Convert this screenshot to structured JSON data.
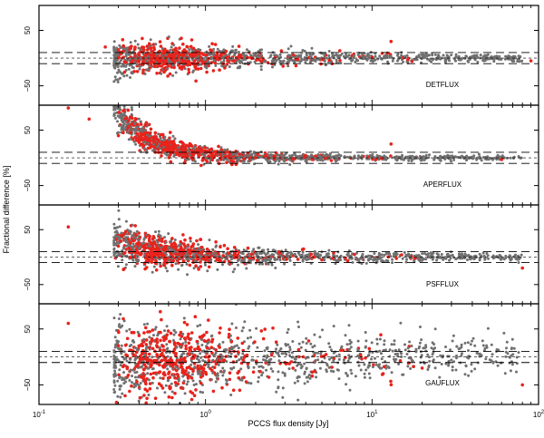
{
  "figure": {
    "ylabel": "Fractional difference [%]",
    "xlabel": "PCCS flux density [Jy]",
    "x_ticks": [
      {
        "value": 0.1,
        "base": "10",
        "exp": "-1"
      },
      {
        "value": 1,
        "base": "10",
        "exp": "0"
      },
      {
        "value": 10,
        "base": "10",
        "exp": "1"
      },
      {
        "value": 100,
        "base": "10",
        "exp": "2"
      }
    ],
    "y_ticks": [
      {
        "value": 50,
        "label": "50"
      },
      {
        "value": -50,
        "label": "−50"
      }
    ]
  },
  "chart_data": [
    {
      "type": "scatter",
      "panel_label": "DETFLUX",
      "x_scale": "log",
      "xlim": [
        0.1,
        100
      ],
      "ylim": [
        -85,
        95
      ],
      "reference_lines": [
        10,
        -10
      ],
      "zero_line": 0,
      "series": [
        {
          "color": "#707070"
        },
        {
          "color": "#e8231c"
        }
      ],
      "sample_points": [
        [
          0.25,
          20
        ],
        [
          0.3,
          15
        ],
        [
          0.4,
          5
        ],
        [
          1.2,
          0
        ],
        [
          3.5,
          -2
        ],
        [
          13,
          30
        ],
        [
          90,
          -5
        ]
      ]
    },
    {
      "type": "scatter",
      "panel_label": "APERFLUX",
      "x_scale": "log",
      "xlim": [
        0.1,
        100
      ],
      "ylim": [
        -85,
        95
      ],
      "reference_lines": [
        10,
        -10
      ],
      "zero_line": 0,
      "series": [
        {
          "color": "#707070"
        },
        {
          "color": "#e8231c"
        }
      ],
      "sample_points": [
        [
          0.15,
          90
        ],
        [
          0.2,
          70
        ],
        [
          0.3,
          40
        ],
        [
          0.5,
          10
        ],
        [
          2,
          0
        ],
        [
          13,
          25
        ],
        [
          60,
          -3
        ]
      ]
    },
    {
      "type": "scatter",
      "panel_label": "PSFFLUX",
      "x_scale": "log",
      "xlim": [
        0.1,
        100
      ],
      "ylim": [
        -85,
        95
      ],
      "reference_lines": [
        10,
        -10
      ],
      "zero_line": 0,
      "series": [
        {
          "color": "#707070"
        },
        {
          "color": "#e8231c"
        }
      ],
      "sample_points": [
        [
          0.15,
          55
        ],
        [
          0.3,
          20
        ],
        [
          0.5,
          5
        ],
        [
          1.5,
          0
        ],
        [
          5,
          -5
        ],
        [
          80,
          -20
        ]
      ]
    },
    {
      "type": "scatter",
      "panel_label": "GAUFLUX",
      "x_scale": "log",
      "xlim": [
        0.1,
        100
      ],
      "ylim": [
        -85,
        95
      ],
      "reference_lines": [
        10,
        -10
      ],
      "zero_line": 0,
      "series": [
        {
          "color": "#707070"
        },
        {
          "color": "#e8231c"
        }
      ],
      "sample_points": [
        [
          0.15,
          60
        ],
        [
          0.3,
          20
        ],
        [
          0.6,
          -30
        ],
        [
          1,
          0
        ],
        [
          3,
          -10
        ],
        [
          20,
          -20
        ],
        [
          80,
          -50
        ]
      ]
    }
  ]
}
